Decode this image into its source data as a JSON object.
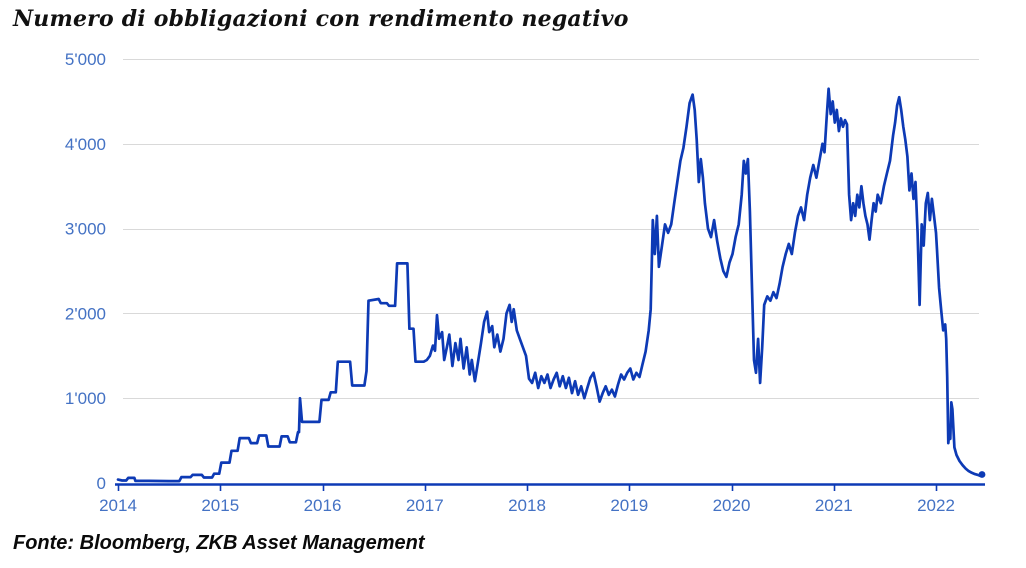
{
  "page": {
    "title": "Numero di obbligazioni con rendimento negativo",
    "source_note": "Fonte: Bloomberg, ZKB Asset Management"
  },
  "colors": {
    "background": "#ffffff",
    "series_line": "#0d3ab5",
    "axis_line": "#0d3ab5",
    "axis_labels": "#4472c4",
    "gridline": "#d9d9d9",
    "title_text": "#111111"
  },
  "chart_data": {
    "type": "line",
    "title": "Numero di obbligazioni con rendimento negativo",
    "xlabel": "",
    "ylabel": "",
    "legend": "none",
    "grid": "horizontal",
    "ylim": [
      0,
      5000
    ],
    "xlim": [
      2013.97,
      2022.47
    ],
    "x_ticks": [
      2014,
      2015,
      2016,
      2017,
      2018,
      2019,
      2020,
      2021,
      2022
    ],
    "y_ticks": [
      {
        "value": 0,
        "label": "0"
      },
      {
        "value": 1000,
        "label": "1'000"
      },
      {
        "value": 2000,
        "label": "2'000"
      },
      {
        "value": 3000,
        "label": "3'000"
      },
      {
        "value": 4000,
        "label": "4'000"
      },
      {
        "value": 5000,
        "label": "5'000"
      }
    ],
    "end_marker": true,
    "series": [
      {
        "name": "Numero di obbligazioni con rendimento negativo",
        "points": [
          [
            2014.0,
            40
          ],
          [
            2014.04,
            30
          ],
          [
            2014.08,
            30
          ],
          [
            2014.1,
            60
          ],
          [
            2014.16,
            60
          ],
          [
            2014.17,
            25
          ],
          [
            2014.3,
            25
          ],
          [
            2014.5,
            22
          ],
          [
            2014.6,
            22
          ],
          [
            2014.62,
            70
          ],
          [
            2014.71,
            70
          ],
          [
            2014.73,
            95
          ],
          [
            2014.82,
            95
          ],
          [
            2014.84,
            65
          ],
          [
            2014.92,
            65
          ],
          [
            2014.94,
            110
          ],
          [
            2014.99,
            110
          ],
          [
            2015.01,
            240
          ],
          [
            2015.09,
            240
          ],
          [
            2015.11,
            380
          ],
          [
            2015.17,
            380
          ],
          [
            2015.19,
            530
          ],
          [
            2015.28,
            530
          ],
          [
            2015.3,
            470
          ],
          [
            2015.36,
            470
          ],
          [
            2015.38,
            560
          ],
          [
            2015.45,
            560
          ],
          [
            2015.47,
            430
          ],
          [
            2015.58,
            430
          ],
          [
            2015.6,
            550
          ],
          [
            2015.66,
            550
          ],
          [
            2015.68,
            480
          ],
          [
            2015.74,
            480
          ],
          [
            2015.76,
            600
          ],
          [
            2015.77,
            600
          ],
          [
            2015.78,
            1000
          ],
          [
            2015.8,
            720
          ],
          [
            2015.97,
            720
          ],
          [
            2015.99,
            980
          ],
          [
            2016.06,
            980
          ],
          [
            2016.08,
            1070
          ],
          [
            2016.13,
            1070
          ],
          [
            2016.15,
            1430
          ],
          [
            2016.27,
            1430
          ],
          [
            2016.29,
            1150
          ],
          [
            2016.41,
            1150
          ],
          [
            2016.43,
            1320
          ],
          [
            2016.45,
            2150
          ],
          [
            2016.55,
            2170
          ],
          [
            2016.57,
            2120
          ],
          [
            2016.63,
            2120
          ],
          [
            2016.65,
            2090
          ],
          [
            2016.71,
            2090
          ],
          [
            2016.73,
            2590
          ],
          [
            2016.83,
            2590
          ],
          [
            2016.85,
            1820
          ],
          [
            2016.89,
            1820
          ],
          [
            2016.91,
            1430
          ],
          [
            2016.99,
            1430
          ],
          [
            2017.02,
            1450
          ],
          [
            2017.05,
            1500
          ],
          [
            2017.08,
            1620
          ],
          [
            2017.1,
            1560
          ],
          [
            2017.12,
            1980
          ],
          [
            2017.14,
            1700
          ],
          [
            2017.17,
            1780
          ],
          [
            2017.19,
            1450
          ],
          [
            2017.22,
            1620
          ],
          [
            2017.24,
            1750
          ],
          [
            2017.27,
            1380
          ],
          [
            2017.3,
            1650
          ],
          [
            2017.33,
            1450
          ],
          [
            2017.35,
            1700
          ],
          [
            2017.38,
            1350
          ],
          [
            2017.41,
            1600
          ],
          [
            2017.44,
            1280
          ],
          [
            2017.46,
            1450
          ],
          [
            2017.49,
            1200
          ],
          [
            2017.52,
            1420
          ],
          [
            2017.55,
            1650
          ],
          [
            2017.58,
            1900
          ],
          [
            2017.61,
            2020
          ],
          [
            2017.63,
            1780
          ],
          [
            2017.66,
            1850
          ],
          [
            2017.68,
            1600
          ],
          [
            2017.71,
            1750
          ],
          [
            2017.74,
            1550
          ],
          [
            2017.77,
            1700
          ],
          [
            2017.8,
            2000
          ],
          [
            2017.83,
            2100
          ],
          [
            2017.85,
            1900
          ],
          [
            2017.87,
            2050
          ],
          [
            2017.9,
            1800
          ],
          [
            2017.93,
            1700
          ],
          [
            2017.96,
            1600
          ],
          [
            2017.99,
            1500
          ],
          [
            2018.02,
            1230
          ],
          [
            2018.05,
            1180
          ],
          [
            2018.08,
            1300
          ],
          [
            2018.11,
            1120
          ],
          [
            2018.14,
            1260
          ],
          [
            2018.17,
            1180
          ],
          [
            2018.2,
            1280
          ],
          [
            2018.23,
            1120
          ],
          [
            2018.26,
            1220
          ],
          [
            2018.29,
            1300
          ],
          [
            2018.32,
            1140
          ],
          [
            2018.35,
            1260
          ],
          [
            2018.38,
            1120
          ],
          [
            2018.41,
            1240
          ],
          [
            2018.44,
            1060
          ],
          [
            2018.47,
            1200
          ],
          [
            2018.5,
            1040
          ],
          [
            2018.53,
            1140
          ],
          [
            2018.56,
            1000
          ],
          [
            2018.59,
            1120
          ],
          [
            2018.62,
            1240
          ],
          [
            2018.65,
            1300
          ],
          [
            2018.68,
            1140
          ],
          [
            2018.71,
            960
          ],
          [
            2018.74,
            1060
          ],
          [
            2018.77,
            1140
          ],
          [
            2018.8,
            1040
          ],
          [
            2018.83,
            1100
          ],
          [
            2018.86,
            1020
          ],
          [
            2018.89,
            1160
          ],
          [
            2018.92,
            1280
          ],
          [
            2018.95,
            1220
          ],
          [
            2018.98,
            1300
          ],
          [
            2019.01,
            1350
          ],
          [
            2019.04,
            1220
          ],
          [
            2019.07,
            1300
          ],
          [
            2019.1,
            1250
          ],
          [
            2019.13,
            1400
          ],
          [
            2019.16,
            1550
          ],
          [
            2019.19,
            1800
          ],
          [
            2019.21,
            2050
          ],
          [
            2019.23,
            3100
          ],
          [
            2019.25,
            2700
          ],
          [
            2019.27,
            3150
          ],
          [
            2019.29,
            2550
          ],
          [
            2019.32,
            2800
          ],
          [
            2019.35,
            3050
          ],
          [
            2019.38,
            2950
          ],
          [
            2019.41,
            3050
          ],
          [
            2019.44,
            3300
          ],
          [
            2019.47,
            3550
          ],
          [
            2019.5,
            3800
          ],
          [
            2019.53,
            3950
          ],
          [
            2019.56,
            4200
          ],
          [
            2019.59,
            4480
          ],
          [
            2019.62,
            4580
          ],
          [
            2019.64,
            4400
          ],
          [
            2019.66,
            4050
          ],
          [
            2019.68,
            3550
          ],
          [
            2019.7,
            3820
          ],
          [
            2019.72,
            3600
          ],
          [
            2019.74,
            3300
          ],
          [
            2019.77,
            3000
          ],
          [
            2019.8,
            2900
          ],
          [
            2019.83,
            3100
          ],
          [
            2019.86,
            2850
          ],
          [
            2019.89,
            2650
          ],
          [
            2019.92,
            2500
          ],
          [
            2019.95,
            2430
          ],
          [
            2019.98,
            2600
          ],
          [
            2020.01,
            2700
          ],
          [
            2020.04,
            2900
          ],
          [
            2020.07,
            3050
          ],
          [
            2020.1,
            3400
          ],
          [
            2020.12,
            3800
          ],
          [
            2020.14,
            3650
          ],
          [
            2020.16,
            3820
          ],
          [
            2020.18,
            3200
          ],
          [
            2020.2,
            2300
          ],
          [
            2020.22,
            1450
          ],
          [
            2020.24,
            1300
          ],
          [
            2020.26,
            1700
          ],
          [
            2020.28,
            1180
          ],
          [
            2020.3,
            1600
          ],
          [
            2020.32,
            2100
          ],
          [
            2020.35,
            2200
          ],
          [
            2020.38,
            2150
          ],
          [
            2020.41,
            2250
          ],
          [
            2020.44,
            2180
          ],
          [
            2020.47,
            2350
          ],
          [
            2020.5,
            2550
          ],
          [
            2020.53,
            2700
          ],
          [
            2020.56,
            2820
          ],
          [
            2020.59,
            2700
          ],
          [
            2020.62,
            2950
          ],
          [
            2020.65,
            3150
          ],
          [
            2020.68,
            3250
          ],
          [
            2020.71,
            3100
          ],
          [
            2020.74,
            3400
          ],
          [
            2020.77,
            3600
          ],
          [
            2020.8,
            3750
          ],
          [
            2020.83,
            3600
          ],
          [
            2020.86,
            3800
          ],
          [
            2020.89,
            4000
          ],
          [
            2020.91,
            3900
          ],
          [
            2020.93,
            4300
          ],
          [
            2020.95,
            4650
          ],
          [
            2020.97,
            4350
          ],
          [
            2020.99,
            4500
          ],
          [
            2021.01,
            4250
          ],
          [
            2021.03,
            4400
          ],
          [
            2021.05,
            4150
          ],
          [
            2021.07,
            4300
          ],
          [
            2021.09,
            4200
          ],
          [
            2021.11,
            4280
          ],
          [
            2021.13,
            4230
          ],
          [
            2021.15,
            3400
          ],
          [
            2021.17,
            3100
          ],
          [
            2021.19,
            3300
          ],
          [
            2021.21,
            3150
          ],
          [
            2021.23,
            3400
          ],
          [
            2021.25,
            3250
          ],
          [
            2021.27,
            3500
          ],
          [
            2021.29,
            3300
          ],
          [
            2021.31,
            3150
          ],
          [
            2021.33,
            3050
          ],
          [
            2021.35,
            2870
          ],
          [
            2021.37,
            3100
          ],
          [
            2021.39,
            3300
          ],
          [
            2021.41,
            3200
          ],
          [
            2021.43,
            3400
          ],
          [
            2021.46,
            3300
          ],
          [
            2021.49,
            3500
          ],
          [
            2021.52,
            3650
          ],
          [
            2021.55,
            3800
          ],
          [
            2021.58,
            4100
          ],
          [
            2021.6,
            4250
          ],
          [
            2021.62,
            4450
          ],
          [
            2021.64,
            4550
          ],
          [
            2021.66,
            4400
          ],
          [
            2021.68,
            4200
          ],
          [
            2021.7,
            4050
          ],
          [
            2021.72,
            3850
          ],
          [
            2021.74,
            3450
          ],
          [
            2021.76,
            3650
          ],
          [
            2021.78,
            3350
          ],
          [
            2021.8,
            3550
          ],
          [
            2021.82,
            2950
          ],
          [
            2021.84,
            2100
          ],
          [
            2021.86,
            3050
          ],
          [
            2021.88,
            2800
          ],
          [
            2021.9,
            3300
          ],
          [
            2021.92,
            3420
          ],
          [
            2021.94,
            3100
          ],
          [
            2021.96,
            3350
          ],
          [
            2021.98,
            3150
          ],
          [
            2022.0,
            2950
          ],
          [
            2022.01,
            2750
          ],
          [
            2022.03,
            2300
          ],
          [
            2022.05,
            2050
          ],
          [
            2022.07,
            1800
          ],
          [
            2022.09,
            1870
          ],
          [
            2022.1,
            1700
          ],
          [
            2022.11,
            1250
          ],
          [
            2022.12,
            470
          ],
          [
            2022.13,
            600
          ],
          [
            2022.14,
            520
          ],
          [
            2022.15,
            950
          ],
          [
            2022.16,
            870
          ],
          [
            2022.18,
            420
          ],
          [
            2022.2,
            330
          ],
          [
            2022.23,
            260
          ],
          [
            2022.26,
            210
          ],
          [
            2022.29,
            170
          ],
          [
            2022.32,
            140
          ],
          [
            2022.35,
            120
          ],
          [
            2022.38,
            105
          ],
          [
            2022.41,
            95
          ],
          [
            2022.43,
            85
          ],
          [
            2022.45,
            100
          ]
        ]
      }
    ]
  }
}
